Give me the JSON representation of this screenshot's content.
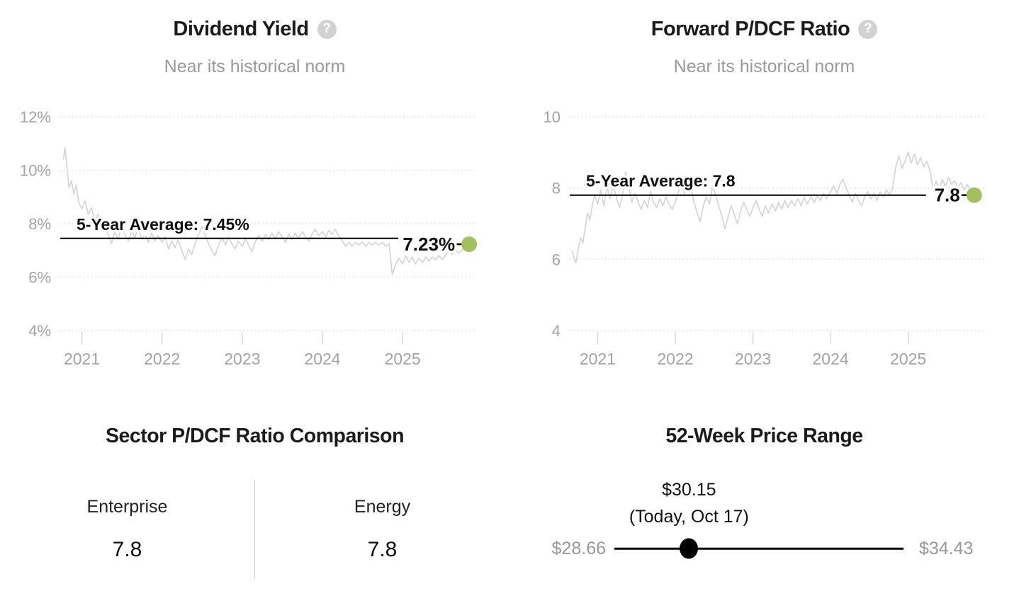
{
  "colors": {
    "title": "#1b1b1b",
    "subtitle": "#9a9a9a",
    "axis_label": "#a3a3a3",
    "gridline": "#dcdcdc",
    "tick": "#d9d9d9",
    "series_line": "#d4d4d4",
    "average_line": "#000000",
    "annotation": "#111111",
    "marker_green": "#a3c05c",
    "divider": "#cccccc",
    "muted_label": "#999999",
    "slider": "#000000",
    "help_icon_bg": "#d2d2d2",
    "help_icon_fg": "#ffffff"
  },
  "icons": {
    "help_glyph": "?"
  },
  "chart_data": [
    {
      "type": "line",
      "title": "Dividend Yield",
      "subtitle": "Near its historical norm",
      "y_tick_labels": [
        "12%",
        "10%",
        "8%",
        "6%",
        "4%"
      ],
      "y_tick_values": [
        12,
        10,
        8,
        6,
        4
      ],
      "x_tick_labels": [
        "2021",
        "2022",
        "2023",
        "2024",
        "2025"
      ],
      "x_tick_values": [
        2021,
        2022,
        2023,
        2024,
        2025
      ],
      "xlim": [
        2020.73,
        2025.9
      ],
      "ylim": [
        4,
        12
      ],
      "grid": "horizontal-dotted",
      "legend": "none",
      "average": {
        "value": 7.45,
        "label": "5-Year Average: 7.45%"
      },
      "current": {
        "value": 7.23,
        "label": "7.23%"
      },
      "series": [
        {
          "name": "Dividend Yield %",
          "x": [
            2020.77,
            2020.79,
            2020.82,
            2020.84,
            2020.87,
            2020.9,
            2020.93,
            2020.96,
            2021.0,
            2021.04,
            2021.08,
            2021.12,
            2021.16,
            2021.2,
            2021.24,
            2021.28,
            2021.33,
            2021.37,
            2021.41,
            2021.45,
            2021.5,
            2021.54,
            2021.58,
            2021.62,
            2021.66,
            2021.7,
            2021.75,
            2021.79,
            2021.83,
            2021.87,
            2021.91,
            2021.95,
            2022.0,
            2022.04,
            2022.08,
            2022.12,
            2022.16,
            2022.2,
            2022.25,
            2022.29,
            2022.33,
            2022.37,
            2022.41,
            2022.45,
            2022.5,
            2022.54,
            2022.58,
            2022.62,
            2022.66,
            2022.7,
            2022.75,
            2022.79,
            2022.83,
            2022.87,
            2022.91,
            2022.95,
            2023.0,
            2023.04,
            2023.08,
            2023.12,
            2023.16,
            2023.2,
            2023.25,
            2023.29,
            2023.33,
            2023.37,
            2023.41,
            2023.45,
            2023.5,
            2023.54,
            2023.58,
            2023.62,
            2023.66,
            2023.7,
            2023.75,
            2023.79,
            2023.83,
            2023.87,
            2023.91,
            2023.95,
            2024.0,
            2024.04,
            2024.08,
            2024.12,
            2024.16,
            2024.2,
            2024.25,
            2024.29,
            2024.33,
            2024.37,
            2024.41,
            2024.45,
            2024.5,
            2024.54,
            2024.58,
            2024.62,
            2024.66,
            2024.7,
            2024.75,
            2024.79,
            2024.83,
            2024.85,
            2024.87,
            2024.91,
            2024.95,
            2025.0,
            2025.04,
            2025.08,
            2025.12,
            2025.16,
            2025.2,
            2025.25,
            2025.29,
            2025.33,
            2025.37,
            2025.41,
            2025.45,
            2025.5,
            2025.54,
            2025.58,
            2025.62,
            2025.66,
            2025.7,
            2025.75,
            2025.79,
            2025.83
          ],
          "y": [
            10.4,
            10.85,
            9.9,
            9.35,
            9.6,
            9.1,
            9.45,
            8.8,
            8.55,
            8.85,
            8.35,
            8.6,
            8.1,
            8.35,
            7.85,
            8.15,
            7.55,
            7.25,
            7.7,
            7.4,
            7.95,
            7.55,
            7.35,
            7.75,
            7.45,
            7.85,
            7.4,
            7.6,
            7.3,
            7.65,
            7.35,
            7.55,
            7.3,
            7.5,
            7.05,
            7.35,
            7.1,
            7.4,
            6.95,
            6.65,
            7.05,
            6.85,
            7.25,
            7.55,
            7.9,
            7.55,
            7.25,
            7.0,
            6.8,
            7.15,
            7.45,
            7.2,
            7.5,
            7.25,
            7.05,
            7.35,
            7.15,
            7.45,
            7.2,
            6.95,
            7.3,
            7.55,
            7.35,
            7.6,
            7.4,
            7.65,
            7.45,
            7.7,
            7.5,
            7.3,
            7.6,
            7.4,
            7.65,
            7.45,
            7.7,
            7.5,
            7.35,
            7.6,
            7.8,
            7.55,
            7.7,
            7.5,
            7.75,
            7.6,
            7.8,
            7.55,
            7.35,
            7.15,
            7.3,
            7.15,
            7.3,
            7.2,
            7.3,
            7.15,
            7.3,
            7.2,
            7.3,
            7.2,
            7.3,
            7.15,
            7.25,
            6.75,
            6.1,
            6.45,
            6.7,
            6.5,
            6.8,
            6.55,
            6.75,
            6.5,
            6.7,
            6.55,
            6.75,
            6.6,
            6.75,
            6.65,
            6.8,
            6.65,
            6.85,
            6.95,
            6.85,
            7.0,
            6.9,
            7.05,
            7.1,
            7.23
          ]
        }
      ]
    },
    {
      "type": "line",
      "title": "Forward P/DCF Ratio",
      "subtitle": "Near its historical norm",
      "y_tick_labels": [
        "10",
        "8",
        "6",
        "4"
      ],
      "y_tick_values": [
        10,
        8,
        6,
        4
      ],
      "x_tick_labels": [
        "2021",
        "2022",
        "2023",
        "2024",
        "2025"
      ],
      "x_tick_values": [
        2021,
        2022,
        2023,
        2024,
        2025
      ],
      "xlim": [
        2020.64,
        2025.98
      ],
      "ylim": [
        4,
        10
      ],
      "grid": "horizontal-dotted",
      "legend": "none",
      "average": {
        "value": 7.8,
        "label": "5-Year Average: 7.8"
      },
      "current": {
        "value": 7.8,
        "label": "7.8"
      },
      "series": [
        {
          "name": "Forward P/DCF Ratio",
          "x": [
            2020.67,
            2020.7,
            2020.72,
            2020.75,
            2020.78,
            2020.81,
            2020.84,
            2020.87,
            2020.9,
            2020.93,
            2020.96,
            2021.0,
            2021.04,
            2021.08,
            2021.12,
            2021.16,
            2021.2,
            2021.24,
            2021.28,
            2021.32,
            2021.36,
            2021.4,
            2021.44,
            2021.48,
            2021.52,
            2021.56,
            2021.6,
            2021.64,
            2021.68,
            2021.72,
            2021.76,
            2021.8,
            2021.84,
            2021.88,
            2021.92,
            2021.96,
            2022.0,
            2022.04,
            2022.08,
            2022.12,
            2022.16,
            2022.2,
            2022.24,
            2022.28,
            2022.32,
            2022.36,
            2022.4,
            2022.44,
            2022.48,
            2022.52,
            2022.56,
            2022.6,
            2022.64,
            2022.68,
            2022.72,
            2022.76,
            2022.8,
            2022.84,
            2022.88,
            2022.92,
            2022.96,
            2023.0,
            2023.04,
            2023.08,
            2023.12,
            2023.16,
            2023.2,
            2023.25,
            2023.29,
            2023.33,
            2023.37,
            2023.41,
            2023.45,
            2023.5,
            2023.54,
            2023.58,
            2023.62,
            2023.66,
            2023.7,
            2023.75,
            2023.79,
            2023.83,
            2023.87,
            2023.91,
            2023.95,
            2024.0,
            2024.04,
            2024.08,
            2024.12,
            2024.16,
            2024.2,
            2024.24,
            2024.28,
            2024.32,
            2024.36,
            2024.4,
            2024.44,
            2024.48,
            2024.52,
            2024.56,
            2024.6,
            2024.64,
            2024.68,
            2024.72,
            2024.76,
            2024.8,
            2024.84,
            2024.88,
            2024.92,
            2024.96,
            2025.0,
            2025.04,
            2025.08,
            2025.12,
            2025.16,
            2025.2,
            2025.24,
            2025.28,
            2025.32,
            2025.36,
            2025.4,
            2025.44,
            2025.48,
            2025.52,
            2025.56,
            2025.6,
            2025.64,
            2025.68,
            2025.72,
            2025.76,
            2025.8,
            2025.85
          ],
          "y": [
            6.25,
            6.0,
            5.9,
            6.3,
            6.6,
            6.45,
            6.9,
            7.3,
            7.1,
            7.5,
            7.8,
            7.55,
            7.95,
            7.5,
            8.05,
            7.7,
            8.1,
            7.75,
            7.45,
            7.8,
            8.45,
            8.1,
            7.6,
            7.85,
            7.6,
            7.4,
            7.65,
            7.45,
            7.9,
            7.6,
            7.45,
            7.7,
            7.5,
            7.75,
            7.55,
            7.4,
            7.6,
            7.9,
            8.15,
            7.85,
            8.35,
            8.0,
            7.6,
            7.3,
            7.05,
            7.5,
            7.75,
            7.55,
            8.05,
            7.8,
            7.5,
            7.2,
            6.85,
            7.2,
            7.5,
            7.25,
            7.0,
            7.35,
            7.6,
            7.4,
            7.2,
            7.45,
            7.65,
            7.4,
            7.2,
            7.5,
            7.3,
            7.55,
            7.35,
            7.6,
            7.4,
            7.65,
            7.45,
            7.65,
            7.5,
            7.7,
            7.5,
            7.75,
            7.55,
            7.75,
            7.6,
            7.8,
            7.65,
            7.85,
            7.7,
            7.9,
            8.05,
            7.85,
            8.1,
            8.25,
            8.0,
            7.8,
            7.6,
            7.85,
            7.65,
            7.5,
            7.75,
            7.9,
            7.7,
            7.85,
            7.65,
            7.9,
            7.75,
            7.95,
            7.8,
            8.0,
            8.6,
            8.9,
            8.55,
            8.75,
            9.0,
            8.7,
            8.95,
            8.65,
            8.85,
            8.6,
            8.75,
            8.5,
            7.95,
            8.2,
            7.95,
            8.25,
            8.05,
            8.3,
            8.1,
            8.2,
            8.0,
            8.15,
            7.95,
            8.1,
            7.95,
            7.8
          ]
        }
      ]
    }
  ],
  "sector_comparison": {
    "title": "Sector P/DCF Ratio Comparison",
    "columns": [
      {
        "label": "Enterprise",
        "value": "7.8"
      },
      {
        "label": "Energy",
        "value": "7.8"
      }
    ]
  },
  "price_range": {
    "title": "52-Week Price Range",
    "current_price": "$30.15",
    "current_date": "(Today, Oct 17)",
    "low": "$28.66",
    "high": "$34.43",
    "low_value": 28.66,
    "high_value": 34.43,
    "current_value": 30.15
  }
}
